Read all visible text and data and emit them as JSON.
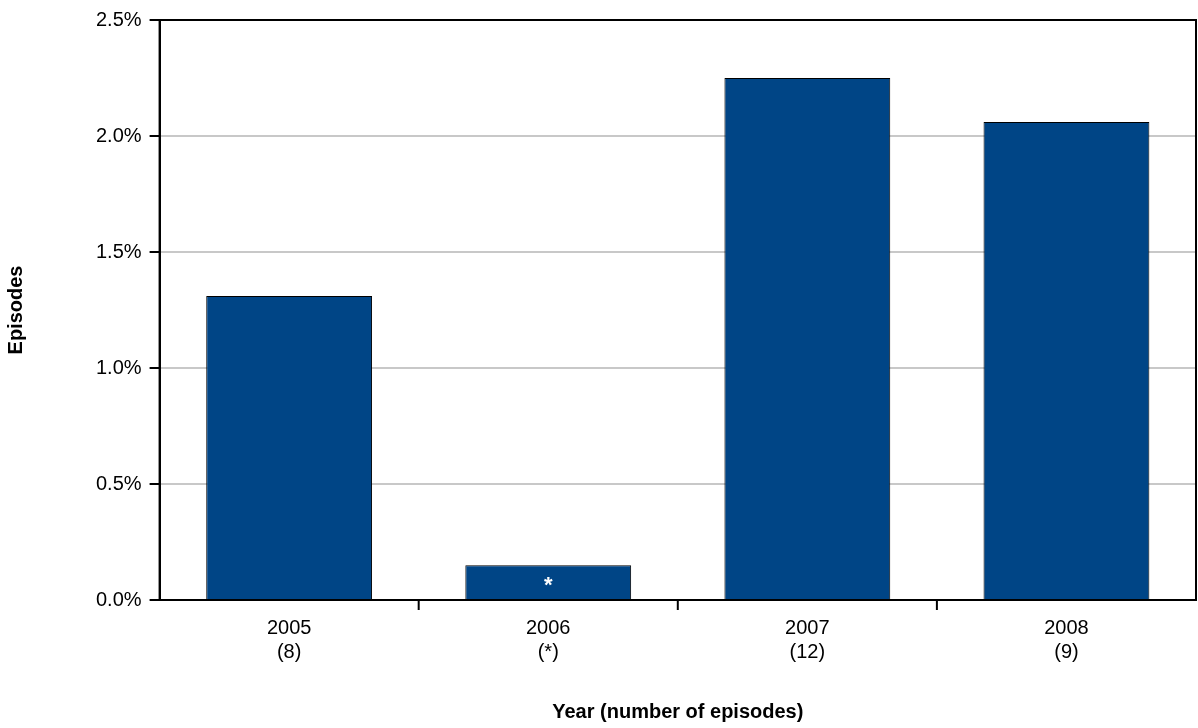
{
  "chart_data": {
    "type": "bar",
    "xlabel": "Year (number of episodes)",
    "ylabel": "Episodes",
    "categories": [
      "2005\n(8)",
      "2006\n(*)",
      "2007\n(12)",
      "2008\n(9)"
    ],
    "values": [
      1.31,
      0.15,
      2.25,
      2.06
    ],
    "color": "#004586",
    "ylim": [
      0,
      2.5
    ],
    "yticks": [
      {
        "value": 0,
        "label": "0.0%"
      },
      {
        "value": 0.5,
        "label": "0.5%"
      },
      {
        "value": 1,
        "label": "1.0%"
      },
      {
        "value": 1.5,
        "label": "1.5%"
      },
      {
        "value": 2,
        "label": "2.0%"
      },
      {
        "value": 2.5,
        "label": "2.5%"
      }
    ],
    "grid": "y",
    "legend": false,
    "annotations": [
      {
        "text": "*",
        "x": "2006\n(*)",
        "y": 0.15
      }
    ]
  }
}
